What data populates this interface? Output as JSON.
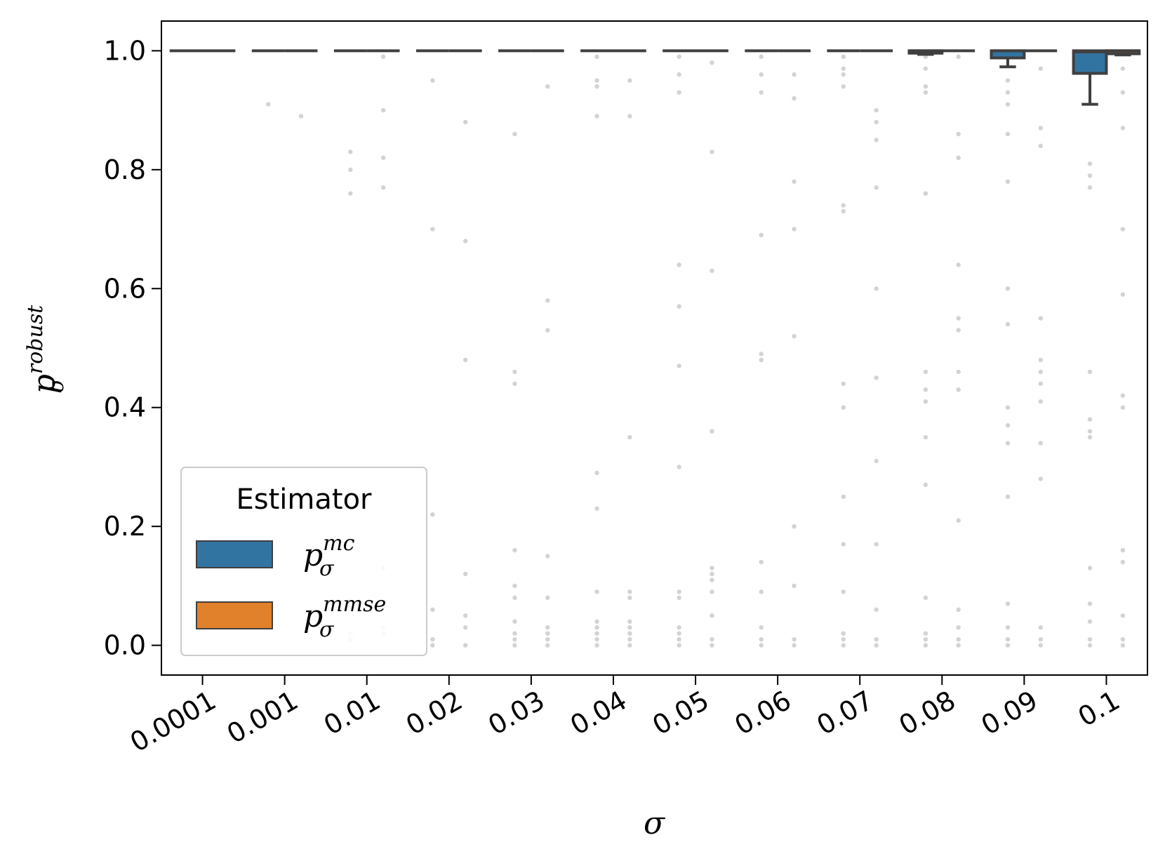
{
  "chart_data": {
    "type": "box",
    "xlabel_symbol": "σ",
    "ylabel_base": "p",
    "ylabel_sub": "σ",
    "ylabel_sup": "robust",
    "categories": [
      "0.0001",
      "0.001",
      "0.01",
      "0.02",
      "0.03",
      "0.04",
      "0.05",
      "0.06",
      "0.07",
      "0.08",
      "0.09",
      "0.1"
    ],
    "y_ticks": [
      "0.0",
      "0.2",
      "0.4",
      "0.6",
      "0.8",
      "1.0"
    ],
    "y_tick_values": [
      0.0,
      0.2,
      0.4,
      0.6,
      0.8,
      1.0
    ],
    "ylim": [
      -0.05,
      1.05
    ],
    "grid": false,
    "legend": {
      "title": "Estimator",
      "placement": "lower-left",
      "entries": [
        {
          "base": "p",
          "sub": "σ",
          "sup": "mc",
          "color": "#3274a1"
        },
        {
          "base": "p",
          "sub": "σ",
          "sup": "mmse",
          "color": "#e1812c"
        }
      ]
    },
    "series": [
      {
        "name": "mc",
        "color": "#3274a1",
        "boxes": [
          {
            "q1": 1.0,
            "median": 1.0,
            "q3": 1.0,
            "whislo": 1.0,
            "whishi": 1.0
          },
          {
            "q1": 1.0,
            "median": 1.0,
            "q3": 1.0,
            "whislo": 1.0,
            "whishi": 1.0
          },
          {
            "q1": 1.0,
            "median": 1.0,
            "q3": 1.0,
            "whislo": 1.0,
            "whishi": 1.0
          },
          {
            "q1": 1.0,
            "median": 1.0,
            "q3": 1.0,
            "whislo": 1.0,
            "whishi": 1.0
          },
          {
            "q1": 1.0,
            "median": 1.0,
            "q3": 1.0,
            "whislo": 1.0,
            "whishi": 1.0
          },
          {
            "q1": 1.0,
            "median": 1.0,
            "q3": 1.0,
            "whislo": 1.0,
            "whishi": 1.0
          },
          {
            "q1": 1.0,
            "median": 1.0,
            "q3": 1.0,
            "whislo": 1.0,
            "whishi": 1.0
          },
          {
            "q1": 1.0,
            "median": 1.0,
            "q3": 1.0,
            "whislo": 1.0,
            "whishi": 1.0
          },
          {
            "q1": 1.0,
            "median": 1.0,
            "q3": 1.0,
            "whislo": 1.0,
            "whishi": 1.0
          },
          {
            "q1": 0.996,
            "median": 1.0,
            "q3": 1.0,
            "whislo": 0.994,
            "whishi": 1.0
          },
          {
            "q1": 0.988,
            "median": 1.0,
            "q3": 1.0,
            "whislo": 0.973,
            "whishi": 1.0
          },
          {
            "q1": 0.962,
            "median": 0.998,
            "q3": 1.0,
            "whislo": 0.91,
            "whishi": 1.0
          }
        ],
        "outliers": [
          [],
          [
            0.91
          ],
          [
            0.83,
            0.8,
            0.76,
            0.02,
            0.01
          ],
          [
            0.95,
            0.7,
            0.22,
            0.06,
            0.01,
            0.0
          ],
          [
            0.86,
            0.46,
            0.44,
            0.16,
            0.1,
            0.08,
            0.04,
            0.02,
            0.01,
            0.0
          ],
          [
            0.99,
            0.95,
            0.94,
            0.89,
            0.29,
            0.23,
            0.09,
            0.04,
            0.03,
            0.02,
            0.01,
            0.0
          ],
          [
            0.99,
            0.96,
            0.93,
            0.64,
            0.57,
            0.47,
            0.3,
            0.09,
            0.08,
            0.03,
            0.02,
            0.01,
            0.0
          ],
          [
            0.99,
            0.96,
            0.93,
            0.69,
            0.49,
            0.48,
            0.14,
            0.09,
            0.03,
            0.01,
            0.0
          ],
          [
            0.99,
            0.97,
            0.96,
            0.94,
            0.74,
            0.73,
            0.44,
            0.4,
            0.25,
            0.17,
            0.09,
            0.02,
            0.01,
            0.0
          ],
          [
            0.99,
            0.97,
            0.94,
            0.93,
            0.76,
            0.76,
            0.46,
            0.43,
            0.41,
            0.35,
            0.27,
            0.08,
            0.02,
            0.01,
            0.0
          ],
          [
            0.95,
            0.93,
            0.91,
            0.86,
            0.78,
            0.6,
            0.54,
            0.4,
            0.37,
            0.34,
            0.25,
            0.07,
            0.03,
            0.01,
            0.0
          ],
          [
            0.81,
            0.79,
            0.77,
            0.46,
            0.38,
            0.36,
            0.35,
            0.13,
            0.07,
            0.04,
            0.01,
            0.0
          ]
        ]
      },
      {
        "name": "mmse",
        "color": "#e1812c",
        "boxes": [
          {
            "q1": 1.0,
            "median": 1.0,
            "q3": 1.0,
            "whislo": 1.0,
            "whishi": 1.0
          },
          {
            "q1": 1.0,
            "median": 1.0,
            "q3": 1.0,
            "whislo": 1.0,
            "whishi": 1.0
          },
          {
            "q1": 1.0,
            "median": 1.0,
            "q3": 1.0,
            "whislo": 1.0,
            "whishi": 1.0
          },
          {
            "q1": 1.0,
            "median": 1.0,
            "q3": 1.0,
            "whislo": 1.0,
            "whishi": 1.0
          },
          {
            "q1": 1.0,
            "median": 1.0,
            "q3": 1.0,
            "whislo": 1.0,
            "whishi": 1.0
          },
          {
            "q1": 1.0,
            "median": 1.0,
            "q3": 1.0,
            "whislo": 1.0,
            "whishi": 1.0
          },
          {
            "q1": 1.0,
            "median": 1.0,
            "q3": 1.0,
            "whislo": 1.0,
            "whishi": 1.0
          },
          {
            "q1": 1.0,
            "median": 1.0,
            "q3": 1.0,
            "whislo": 1.0,
            "whishi": 1.0
          },
          {
            "q1": 1.0,
            "median": 1.0,
            "q3": 1.0,
            "whislo": 1.0,
            "whishi": 1.0
          },
          {
            "q1": 1.0,
            "median": 1.0,
            "q3": 1.0,
            "whislo": 1.0,
            "whishi": 1.0
          },
          {
            "q1": 1.0,
            "median": 1.0,
            "q3": 1.0,
            "whislo": 1.0,
            "whishi": 1.0
          },
          {
            "q1": 0.995,
            "median": 1.0,
            "q3": 1.0,
            "whislo": 0.993,
            "whishi": 1.0
          }
        ],
        "outliers": [
          [],
          [
            0.89
          ],
          [
            0.99,
            0.9,
            0.82,
            0.77,
            0.13,
            0.03,
            0.02
          ],
          [
            0.88,
            0.68,
            0.48,
            0.12,
            0.05,
            0.03,
            0.0
          ],
          [
            0.94,
            0.58,
            0.53,
            0.15,
            0.08,
            0.03,
            0.02,
            0.01,
            0.0
          ],
          [
            0.95,
            0.89,
            0.35,
            0.09,
            0.08,
            0.04,
            0.03,
            0.02,
            0.01,
            0.0
          ],
          [
            0.98,
            0.83,
            0.63,
            0.36,
            0.13,
            0.12,
            0.11,
            0.09,
            0.05,
            0.01,
            0.0
          ],
          [
            0.96,
            0.92,
            0.78,
            0.7,
            0.52,
            0.2,
            0.1,
            0.01,
            0.0
          ],
          [
            0.9,
            0.88,
            0.85,
            0.77,
            0.6,
            0.45,
            0.31,
            0.17,
            0.06,
            0.01,
            0.0
          ],
          [
            0.99,
            0.86,
            0.82,
            0.64,
            0.55,
            0.53,
            0.46,
            0.43,
            0.21,
            0.06,
            0.03,
            0.01,
            0.0
          ],
          [
            0.97,
            0.87,
            0.84,
            0.55,
            0.48,
            0.46,
            0.44,
            0.41,
            0.34,
            0.28,
            0.03,
            0.01,
            0.0
          ],
          [
            0.97,
            0.93,
            0.87,
            0.7,
            0.59,
            0.42,
            0.4,
            0.16,
            0.14,
            0.05,
            0.01,
            0.0
          ]
        ]
      }
    ]
  }
}
